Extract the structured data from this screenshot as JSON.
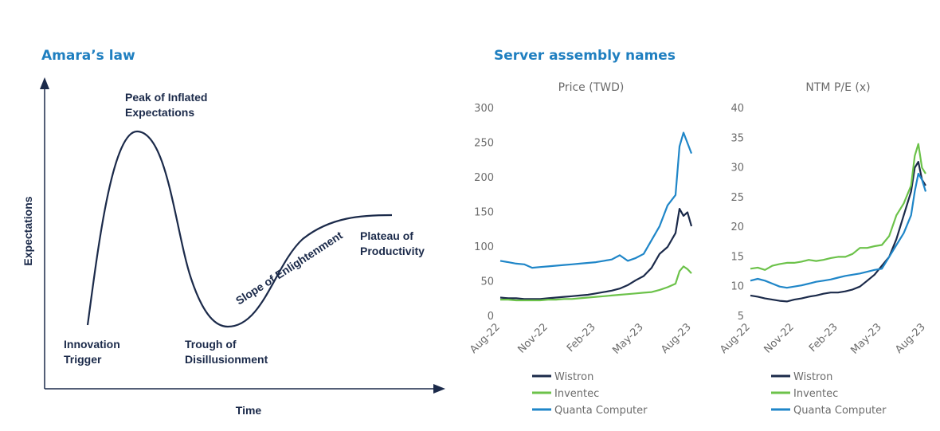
{
  "left_panel": {
    "title": "Amara’s law",
    "x_axis_label": "Time",
    "y_axis_label": "Expectations",
    "phases": [
      {
        "lines": [
          "Innovation",
          "Trigger"
        ]
      },
      {
        "lines": [
          "Peak of Inflated",
          "Expectations"
        ]
      },
      {
        "lines": [
          "Trough of",
          "Disillusionment"
        ]
      },
      {
        "lines": [
          "Slope of Enlightenment"
        ]
      },
      {
        "lines": [
          "Plateau of",
          "Productivity"
        ]
      }
    ]
  },
  "right_panel": {
    "title": "Server assembly names"
  },
  "chart_data": [
    {
      "type": "line",
      "title": "Price (TWD)",
      "x_ticks": [
        "Aug-22",
        "Nov-22",
        "Feb-23",
        "May-23",
        "Aug-23"
      ],
      "ylim": [
        0,
        300
      ],
      "y_ticks": [
        0,
        50,
        100,
        150,
        200,
        250,
        300
      ],
      "grid": false,
      "legend": "bottom",
      "x": [
        0,
        0.5,
        1,
        1.5,
        2,
        2.5,
        3,
        3.5,
        4,
        4.5,
        5,
        5.5,
        6,
        6.5,
        7,
        7.5,
        8,
        8.5,
        9,
        9.5,
        10,
        10.5,
        11,
        11.25,
        11.5,
        11.75,
        12
      ],
      "series": [
        {
          "name": "Wistron",
          "color": "#1b2a4a",
          "values": [
            27,
            26,
            26,
            25,
            25,
            25,
            26,
            27,
            28,
            29,
            30,
            31,
            33,
            35,
            37,
            40,
            45,
            52,
            58,
            70,
            90,
            100,
            120,
            155,
            145,
            150,
            130
          ]
        },
        {
          "name": "Inventec",
          "color": "#6cc24a",
          "values": [
            24,
            24,
            23,
            23,
            23,
            23,
            24,
            24,
            25,
            25,
            26,
            27,
            28,
            29,
            30,
            31,
            32,
            33,
            34,
            35,
            38,
            42,
            47,
            65,
            72,
            68,
            62
          ]
        },
        {
          "name": "Quanta Computer",
          "color": "#1f86c8",
          "values": [
            80,
            78,
            76,
            75,
            70,
            71,
            72,
            73,
            74,
            75,
            76,
            77,
            78,
            80,
            82,
            88,
            80,
            84,
            90,
            110,
            130,
            160,
            175,
            245,
            265,
            250,
            235
          ]
        }
      ]
    },
    {
      "type": "line",
      "title": "NTM P/E (x)",
      "x_ticks": [
        "Aug-22",
        "Nov-22",
        "Feb-23",
        "May-23",
        "Aug-23"
      ],
      "ylim": [
        5,
        40
      ],
      "y_ticks": [
        5,
        10,
        15,
        20,
        25,
        30,
        35,
        40
      ],
      "grid": false,
      "legend": "bottom",
      "x": [
        0,
        0.5,
        1,
        1.5,
        2,
        2.5,
        3,
        3.5,
        4,
        4.5,
        5,
        5.5,
        6,
        6.5,
        7,
        7.5,
        8,
        8.5,
        9,
        9.5,
        10,
        10.5,
        11,
        11.25,
        11.5,
        11.75,
        12
      ],
      "series": [
        {
          "name": "Wistron",
          "color": "#1b2a4a",
          "values": [
            8.5,
            8.3,
            8.0,
            7.8,
            7.6,
            7.5,
            7.8,
            8.0,
            8.3,
            8.5,
            8.8,
            9.0,
            9.0,
            9.2,
            9.5,
            10.0,
            11.0,
            12.0,
            13.5,
            15.0,
            18.0,
            22.0,
            26.0,
            30.0,
            31.0,
            28.0,
            27.0
          ]
        },
        {
          "name": "Inventec",
          "color": "#6cc24a",
          "values": [
            13.0,
            13.2,
            12.8,
            13.5,
            13.8,
            14.0,
            14.0,
            14.2,
            14.5,
            14.3,
            14.5,
            14.8,
            15.0,
            15.0,
            15.5,
            16.5,
            16.5,
            16.8,
            17.0,
            18.5,
            22.0,
            24.0,
            27.0,
            32.0,
            34.0,
            30.0,
            29.0
          ]
        },
        {
          "name": "Quanta Computer",
          "color": "#1f86c8",
          "values": [
            11.0,
            11.3,
            11.0,
            10.5,
            10.0,
            9.8,
            10.0,
            10.2,
            10.5,
            10.8,
            11.0,
            11.2,
            11.5,
            11.8,
            12.0,
            12.2,
            12.5,
            12.8,
            13.0,
            15.0,
            17.0,
            19.0,
            22.0,
            26.0,
            29.0,
            28.0,
            26.0
          ]
        }
      ]
    }
  ]
}
